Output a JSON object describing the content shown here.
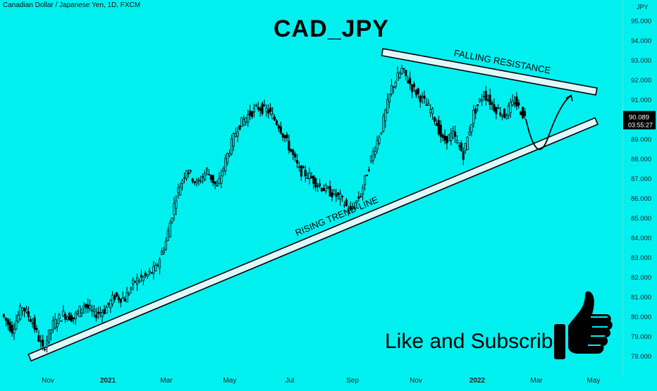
{
  "header": {
    "symbol_line": "Canadian Dollar / Japanese Yen, 1D, FXCM"
  },
  "overlay": {
    "title": "CAD_JPY",
    "cta": "Like and Subscribe"
  },
  "colors": {
    "background": "#00f0f0",
    "bull": "#000000",
    "trend_fill": "#dff7fb",
    "label_bg": "#000000"
  },
  "chart_data": {
    "type": "candlestick",
    "ylabel": "JPY",
    "ylim": [
      77.6,
      95.4
    ],
    "y_ticks": [
      "95.000",
      "94.000",
      "93.000",
      "92.000",
      "91.000",
      "90.000",
      "89.000",
      "88.000",
      "87.000",
      "86.000",
      "85.000",
      "84.000",
      "83.000",
      "82.000",
      "81.000",
      "80.000",
      "79.000",
      "78.000"
    ],
    "x_ticks": [
      "Nov",
      "2021",
      "Mar",
      "May",
      "Jul",
      "Sep",
      "Nov",
      "2022",
      "Mar",
      "May"
    ],
    "price_label": {
      "value": "90.089",
      "countdown": "03:55:27"
    },
    "price_series": [
      [
        "Oct 2020",
        80.1
      ],
      [
        "Early Oct 2020",
        79.3
      ],
      [
        "Mid Oct 2020",
        80.5
      ],
      [
        "Late Oct 2020",
        79.7
      ],
      [
        "Nov 2020",
        78.3
      ],
      [
        "Mid Nov 2020",
        79.6
      ],
      [
        "Late Nov 2020",
        80.1
      ],
      [
        "Dec 2020",
        79.9
      ],
      [
        "Mid Dec 2020",
        80.6
      ],
      [
        "Late Dec 2020",
        80.1
      ],
      [
        "2021",
        80.3
      ],
      [
        "Mid Jan 2021",
        81.0
      ],
      [
        "Late Jan 2021",
        80.9
      ],
      [
        "Feb 2021",
        81.8
      ],
      [
        "Mid Feb 2021",
        82.0
      ],
      [
        "Late Feb 2021",
        82.4
      ],
      [
        "Mar 2021",
        83.8
      ],
      [
        "Mid Mar 2021",
        86.1
      ],
      [
        "Late Mar 2021",
        87.5
      ],
      [
        "Apr 2021",
        86.7
      ],
      [
        "Mid Apr 2021",
        87.4
      ],
      [
        "Late Apr 2021",
        86.5
      ],
      [
        "May 2021",
        88.2
      ],
      [
        "Mid May 2021",
        89.6
      ],
      [
        "Late May 2021",
        90.2
      ],
      [
        "Jun 2021",
        90.6
      ],
      [
        "Mid Jun 2021",
        90.4
      ],
      [
        "Late Jun 2021",
        89.7
      ],
      [
        "Jul 2021",
        88.6
      ],
      [
        "Mid Jul 2021",
        87.4
      ],
      [
        "Late Jul 2021",
        87.1
      ],
      [
        "Aug 2021",
        86.6
      ],
      [
        "Mid Aug 2021",
        86.3
      ],
      [
        "Late Aug 2021",
        86.0
      ],
      [
        "Sep 2021",
        85.3
      ],
      [
        "Mid Sep 2021",
        86.2
      ],
      [
        "Late Sep 2021",
        88.0
      ],
      [
        "Oct 2021",
        89.5
      ],
      [
        "Mid Oct 2021",
        91.6
      ],
      [
        "Late Oct 2021",
        92.5
      ],
      [
        "Nov 2021",
        91.6
      ],
      [
        "Mid Nov 2021",
        91.0
      ],
      [
        "Late Nov 2021",
        90.3
      ],
      [
        "Dec 2021",
        88.9
      ],
      [
        "Mid Dec 2021",
        89.2
      ],
      [
        "Late Dec 2021",
        88.2
      ],
      [
        "2022",
        90.3
      ],
      [
        "Mid Jan 2022",
        91.3
      ],
      [
        "Late Jan 2022",
        90.6
      ],
      [
        "Feb 2022",
        90.2
      ],
      [
        "Mid Feb 2022",
        90.9
      ],
      [
        "Late Feb 2022",
        90.089
      ]
    ],
    "annotations": [
      {
        "text": "FALLING RESISTANCE",
        "from": [
          "Oct 2021",
          93.4
        ],
        "to": [
          "May 2022",
          91.4
        ]
      },
      {
        "text": "RISING TREND-LINE",
        "from": [
          "Nov 2020",
          77.9
        ],
        "to": [
          "May 2022",
          89.9
        ]
      },
      {
        "text": "",
        "path": [
          [
            "Late Feb 2022",
            90.0
          ],
          [
            "Mid Mar 2022",
            88.9
          ],
          [
            "Apr 2022",
            91.2
          ]
        ]
      }
    ]
  }
}
